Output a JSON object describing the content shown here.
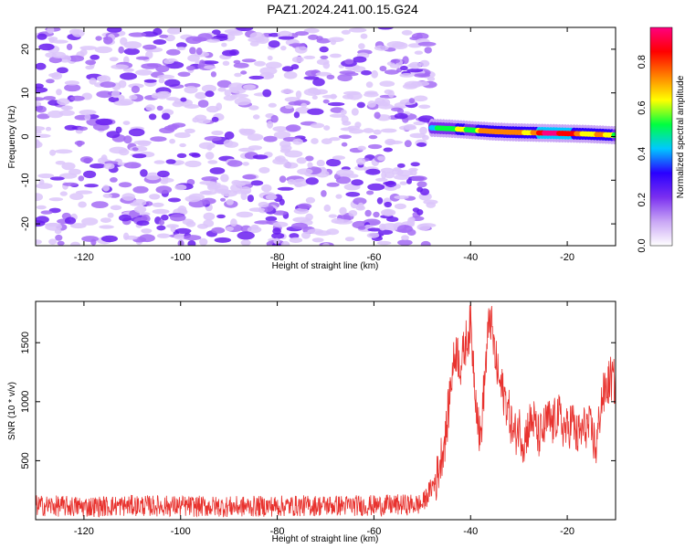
{
  "title": "PAZ1.2024.241.00.15.G24",
  "chart_data": [
    {
      "type": "heatmap",
      "xlabel": "Height of straight line (km)",
      "ylabel": "Frequency (Hz)",
      "xlim": [
        -130,
        -10
      ],
      "ylim": [
        -25,
        25
      ],
      "x_ticks": [
        -120,
        -100,
        -80,
        -60,
        -40,
        -20
      ],
      "y_ticks": [
        -20,
        -10,
        0,
        10,
        20
      ],
      "noise_region_x": [
        -130,
        -48
      ],
      "noise_level_range": [
        0.0,
        0.2
      ],
      "signal_ridge": {
        "x_range": [
          -48,
          -10
        ],
        "frequency_hz": [
          [
            -48,
            2.0
          ],
          [
            -44,
            1.8
          ],
          [
            -40,
            1.5
          ],
          [
            -36,
            1.2
          ],
          [
            -32,
            1.0
          ],
          [
            -28,
            0.9
          ],
          [
            -24,
            0.8
          ],
          [
            -20,
            0.7
          ],
          [
            -16,
            0.6
          ],
          [
            -12,
            0.4
          ],
          [
            -10,
            0.3
          ]
        ],
        "amplitude": [
          [
            -48,
            0.45
          ],
          [
            -45,
            0.55
          ],
          [
            -42,
            0.6
          ],
          [
            -39,
            0.55
          ],
          [
            -37,
            0.8
          ],
          [
            -34,
            0.7
          ],
          [
            -31,
            0.75
          ],
          [
            -28,
            0.65
          ],
          [
            -25,
            0.9
          ],
          [
            -22,
            0.9
          ],
          [
            -19,
            0.85
          ],
          [
            -16,
            0.6
          ],
          [
            -13,
            0.75
          ],
          [
            -10,
            0.55
          ]
        ]
      },
      "colorbar": {
        "label": "Normalized spectral amplitude",
        "range": [
          0.0,
          0.95
        ],
        "ticks": [
          "0.0",
          "0.2",
          "0.4",
          "0.6",
          "0.8"
        ],
        "colors": [
          "#ffffff",
          "#c9a6f5",
          "#7a2ff0",
          "#2a00ff",
          "#00c8ff",
          "#00ff40",
          "#ffff00",
          "#ff8000",
          "#ff0000",
          "#ff0080"
        ]
      },
      "colors": {
        "noise": "#8b3df5"
      }
    },
    {
      "type": "line",
      "xlabel": "Height of straight line (km)",
      "ylabel": "SNR (10 * v/v)",
      "xlim": [
        -130,
        -10
      ],
      "ylim": [
        0,
        1850
      ],
      "x_ticks": [
        -120,
        -100,
        -80,
        -60,
        -40,
        -20
      ],
      "y_ticks": [
        500,
        1000,
        1500
      ],
      "series": [
        {
          "color": "#e8322e",
          "x": [
            -130,
            -120,
            -110,
            -100,
            -90,
            -80,
            -70,
            -60,
            -50,
            -47,
            -45,
            -44,
            -43,
            -42,
            -41,
            -40,
            -39,
            -38,
            -37,
            -36,
            -35,
            -34,
            -33,
            -32,
            -31,
            -30,
            -29,
            -28,
            -27,
            -26,
            -25,
            -24,
            -23,
            -22,
            -21,
            -20,
            -19,
            -18,
            -17,
            -16,
            -15,
            -14,
            -13,
            -12,
            -11,
            -10
          ],
          "y_mean": [
            120,
            110,
            120,
            115,
            110,
            115,
            120,
            120,
            130,
            350,
            750,
            1200,
            1450,
            1300,
            1500,
            1650,
            1100,
            650,
            1250,
            1750,
            1400,
            1150,
            1050,
            900,
            700,
            800,
            650,
            800,
            850,
            700,
            750,
            850,
            800,
            900,
            800,
            750,
            850,
            700,
            750,
            800,
            750,
            600,
            1000,
            1100,
            1200,
            1150
          ],
          "y_spread": 90
        }
      ]
    }
  ]
}
